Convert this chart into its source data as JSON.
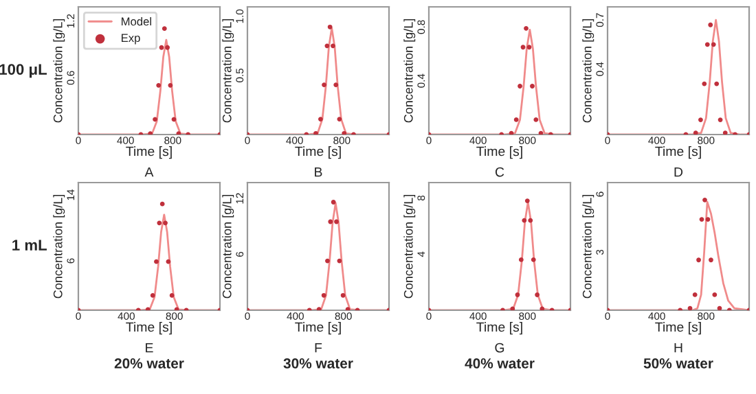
{
  "chart_data": [
    {
      "type": "line",
      "xlabel": "Time [s]",
      "ylabel": "Concentration [g/L]",
      "annotations": [
        "A",
        "100 μL"
      ],
      "xlim": [
        0,
        1200
      ],
      "ylim": [
        0,
        1.35
      ],
      "xticks": [
        0,
        400,
        800
      ],
      "yticks": [
        0.6,
        1.2
      ],
      "legend": "top left",
      "series": [
        {
          "name": "Model",
          "type": "line",
          "color": "#f08a8a",
          "x": [
            0,
            545,
            625,
            665,
            695,
            720,
            745,
            770,
            795,
            825,
            865,
            945,
            1200
          ],
          "values": [
            0,
            0,
            0.01,
            0.14,
            0.46,
            0.82,
            1.0,
            0.82,
            0.46,
            0.14,
            0.01,
            0,
            0
          ]
        },
        {
          "name": "Exp",
          "type": "scatter",
          "marker": "circle",
          "color": "#c0303c",
          "x": [
            0,
            530,
            610,
            650,
            680,
            705,
            730,
            755,
            780,
            810,
            850,
            930,
            1200
          ],
          "values": [
            0,
            0,
            0.01,
            0.16,
            0.52,
            0.92,
            1.12,
            0.92,
            0.52,
            0.16,
            0.01,
            0,
            0
          ]
        }
      ]
    },
    {
      "type": "line",
      "xlabel": "Time [s]",
      "ylabel": "Concentration [g/L]",
      "annotations": [
        "B"
      ],
      "xlim": [
        0,
        1200
      ],
      "ylim": [
        0,
        1.08
      ],
      "xticks": [
        0,
        400,
        800
      ],
      "yticks": [
        0.5,
        {
          "value": 1.0,
          "label": "1.0"
        }
      ],
      "series": [
        {
          "type": "line",
          "color": "#f08a8a",
          "x": [
            0,
            515,
            595,
            635,
            665,
            690,
            715,
            740,
            765,
            795,
            835,
            915,
            1200
          ],
          "values": [
            0,
            0,
            0.01,
            0.13,
            0.41,
            0.74,
            0.9,
            0.74,
            0.41,
            0.13,
            0.01,
            0,
            0
          ]
        },
        {
          "type": "scatter",
          "marker": "circle",
          "color": "#c0303c",
          "x": [
            0,
            500,
            580,
            620,
            650,
            675,
            700,
            725,
            750,
            780,
            820,
            900,
            1200
          ],
          "values": [
            0,
            0,
            0.01,
            0.13,
            0.42,
            0.75,
            0.91,
            0.75,
            0.42,
            0.13,
            0.01,
            0,
            0
          ]
        }
      ]
    },
    {
      "type": "line",
      "xlabel": "Time [s]",
      "ylabel": "Concentration [g/L]",
      "annotations": [
        "C"
      ],
      "xlim": [
        0,
        1150
      ],
      "ylim": [
        0,
        0.95
      ],
      "xticks": [
        0,
        400,
        800
      ],
      "yticks": [
        0.4,
        0.8
      ],
      "series": [
        {
          "type": "line",
          "color": "#f08a8a",
          "x": [
            0,
            620,
            700,
            740,
            770,
            795,
            820,
            845,
            870,
            900,
            940,
            1020,
            1150
          ],
          "values": [
            0,
            0,
            0.01,
            0.11,
            0.36,
            0.64,
            0.78,
            0.64,
            0.36,
            0.11,
            0.01,
            0,
            0
          ]
        },
        {
          "type": "scatter",
          "marker": "circle",
          "color": "#c0303c",
          "x": [
            0,
            590,
            670,
            710,
            740,
            765,
            790,
            815,
            840,
            870,
            910,
            990,
            1150
          ],
          "values": [
            0,
            0,
            0.01,
            0.11,
            0.36,
            0.65,
            0.79,
            0.65,
            0.36,
            0.11,
            0.01,
            0,
            0
          ]
        }
      ]
    },
    {
      "type": "line",
      "xlabel": "Time [s]",
      "ylabel": "Concentration [g/L]",
      "annotations": [
        "D"
      ],
      "xlim": [
        0,
        1150
      ],
      "ylim": [
        0,
        0.78
      ],
      "xticks": [
        0,
        400,
        800
      ],
      "yticks": [
        0.4,
        0.7
      ],
      "series": [
        {
          "type": "line",
          "color": "#f08a8a",
          "x": [
            0,
            680,
            760,
            800,
            830,
            855,
            880,
            905,
            930,
            960,
            1000,
            1080,
            1150
          ],
          "values": [
            0,
            0,
            0.01,
            0.1,
            0.32,
            0.57,
            0.7,
            0.57,
            0.32,
            0.1,
            0.01,
            0,
            0
          ]
        },
        {
          "type": "scatter",
          "marker": "circle",
          "color": "#c0303c",
          "x": [
            0,
            636,
            716,
            756,
            786,
            811,
            836,
            861,
            886,
            916,
            956,
            1036,
            1150
          ],
          "values": [
            0,
            0,
            0.01,
            0.09,
            0.31,
            0.55,
            0.67,
            0.55,
            0.31,
            0.09,
            0.01,
            0,
            0
          ]
        }
      ]
    },
    {
      "type": "line",
      "xlabel": "Time [s]",
      "ylabel": "Concentration [g/L]",
      "annotations": [
        "E",
        "20% water",
        "1 mL"
      ],
      "xlim": [
        0,
        1180
      ],
      "ylim": [
        0,
        15.5
      ],
      "xticks": [
        0,
        400,
        800
      ],
      "yticks": [
        6,
        14
      ],
      "series": [
        {
          "type": "line",
          "color": "#f08a8a",
          "x": [
            0,
            515,
            595,
            635,
            665,
            690,
            715,
            740,
            765,
            795,
            835,
            915,
            1180
          ],
          "values": [
            0,
            0,
            0.1,
            1.6,
            5.3,
            9.5,
            11.6,
            9.5,
            5.3,
            1.6,
            0.1,
            0,
            0
          ]
        },
        {
          "type": "scatter",
          "marker": "circle",
          "color": "#c0303c",
          "x": [
            0,
            500,
            580,
            620,
            650,
            675,
            700,
            725,
            750,
            780,
            820,
            900,
            1180
          ],
          "values": [
            0,
            0,
            0.1,
            1.8,
            5.9,
            10.6,
            12.9,
            10.6,
            5.9,
            1.8,
            0.1,
            0,
            0
          ]
        }
      ]
    },
    {
      "type": "line",
      "xlabel": "Time [s]",
      "ylabel": "Concentration [g/L]",
      "annotations": [
        "F",
        "30% water"
      ],
      "xlim": [
        0,
        1180
      ],
      "ylim": [
        0,
        13.7
      ],
      "xticks": [
        0,
        400,
        800
      ],
      "yticks": [
        6,
        12
      ],
      "series": [
        {
          "type": "line",
          "color": "#f08a8a",
          "x": [
            0,
            535,
            615,
            655,
            685,
            710,
            735,
            760,
            785,
            815,
            855,
            935,
            1180
          ],
          "values": [
            0,
            0,
            0.1,
            1.6,
            5.3,
            9.4,
            11.5,
            9.4,
            5.3,
            1.6,
            0.1,
            0,
            0
          ]
        },
        {
          "type": "scatter",
          "marker": "circle",
          "color": "#c0303c",
          "x": [
            0,
            517,
            597,
            637,
            667,
            692,
            717,
            742,
            767,
            797,
            837,
            917,
            1180
          ],
          "values": [
            0,
            0,
            0.1,
            1.6,
            5.3,
            9.5,
            11.6,
            9.5,
            5.3,
            1.6,
            0.1,
            0,
            0
          ]
        }
      ]
    },
    {
      "type": "line",
      "xlabel": "Time [s]",
      "ylabel": "Concentration [g/L]",
      "annotations": [
        "G",
        "40% water"
      ],
      "xlim": [
        0,
        1150
      ],
      "ylim": [
        0,
        9.1
      ],
      "xticks": [
        0,
        400,
        800
      ],
      "yticks": [
        4,
        8
      ],
      "series": [
        {
          "type": "line",
          "color": "#f08a8a",
          "x": [
            0,
            605,
            685,
            725,
            755,
            780,
            805,
            830,
            855,
            885,
            925,
            1005,
            1150
          ],
          "values": [
            0,
            0,
            0.1,
            1.1,
            3.5,
            6.3,
            7.7,
            6.3,
            3.5,
            1.1,
            0.1,
            0,
            0
          ]
        },
        {
          "type": "scatter",
          "marker": "circle",
          "color": "#c0303c",
          "x": [
            0,
            600,
            680,
            720,
            750,
            775,
            800,
            825,
            850,
            880,
            920,
            1000,
            1150
          ],
          "values": [
            0,
            0,
            0.1,
            1.1,
            3.6,
            6.4,
            7.8,
            6.4,
            3.6,
            1.1,
            0.1,
            0,
            0
          ]
        }
      ]
    },
    {
      "type": "line",
      "xlabel": "Time [s]",
      "ylabel": "Concentration [g/L]",
      "annotations": [
        "H",
        "50% water"
      ],
      "xlim": [
        0,
        1150
      ],
      "ylim": [
        0,
        6.6
      ],
      "xticks": [
        0,
        400,
        800
      ],
      "yticks": [
        3,
        6
      ],
      "series": [
        {
          "type": "line",
          "color": "#f08a8a",
          "x": [
            0,
            690,
            730,
            760,
            785,
            810,
            840,
            870,
            900,
            940,
            980,
            1030,
            1150
          ],
          "values": [
            0,
            0,
            0.1,
            0.8,
            3.0,
            5.6,
            5.0,
            4.0,
            2.8,
            1.4,
            0.5,
            0.1,
            0
          ]
        },
        {
          "type": "scatter",
          "marker": "circle",
          "color": "#c0303c",
          "x": [
            0,
            590,
            670,
            710,
            740,
            765,
            790,
            815,
            840,
            870,
            910,
            990,
            1150
          ],
          "values": [
            0,
            0,
            0.1,
            0.8,
            2.6,
            4.7,
            5.7,
            4.7,
            2.6,
            0.8,
            0.1,
            0,
            0
          ]
        }
      ]
    }
  ]
}
